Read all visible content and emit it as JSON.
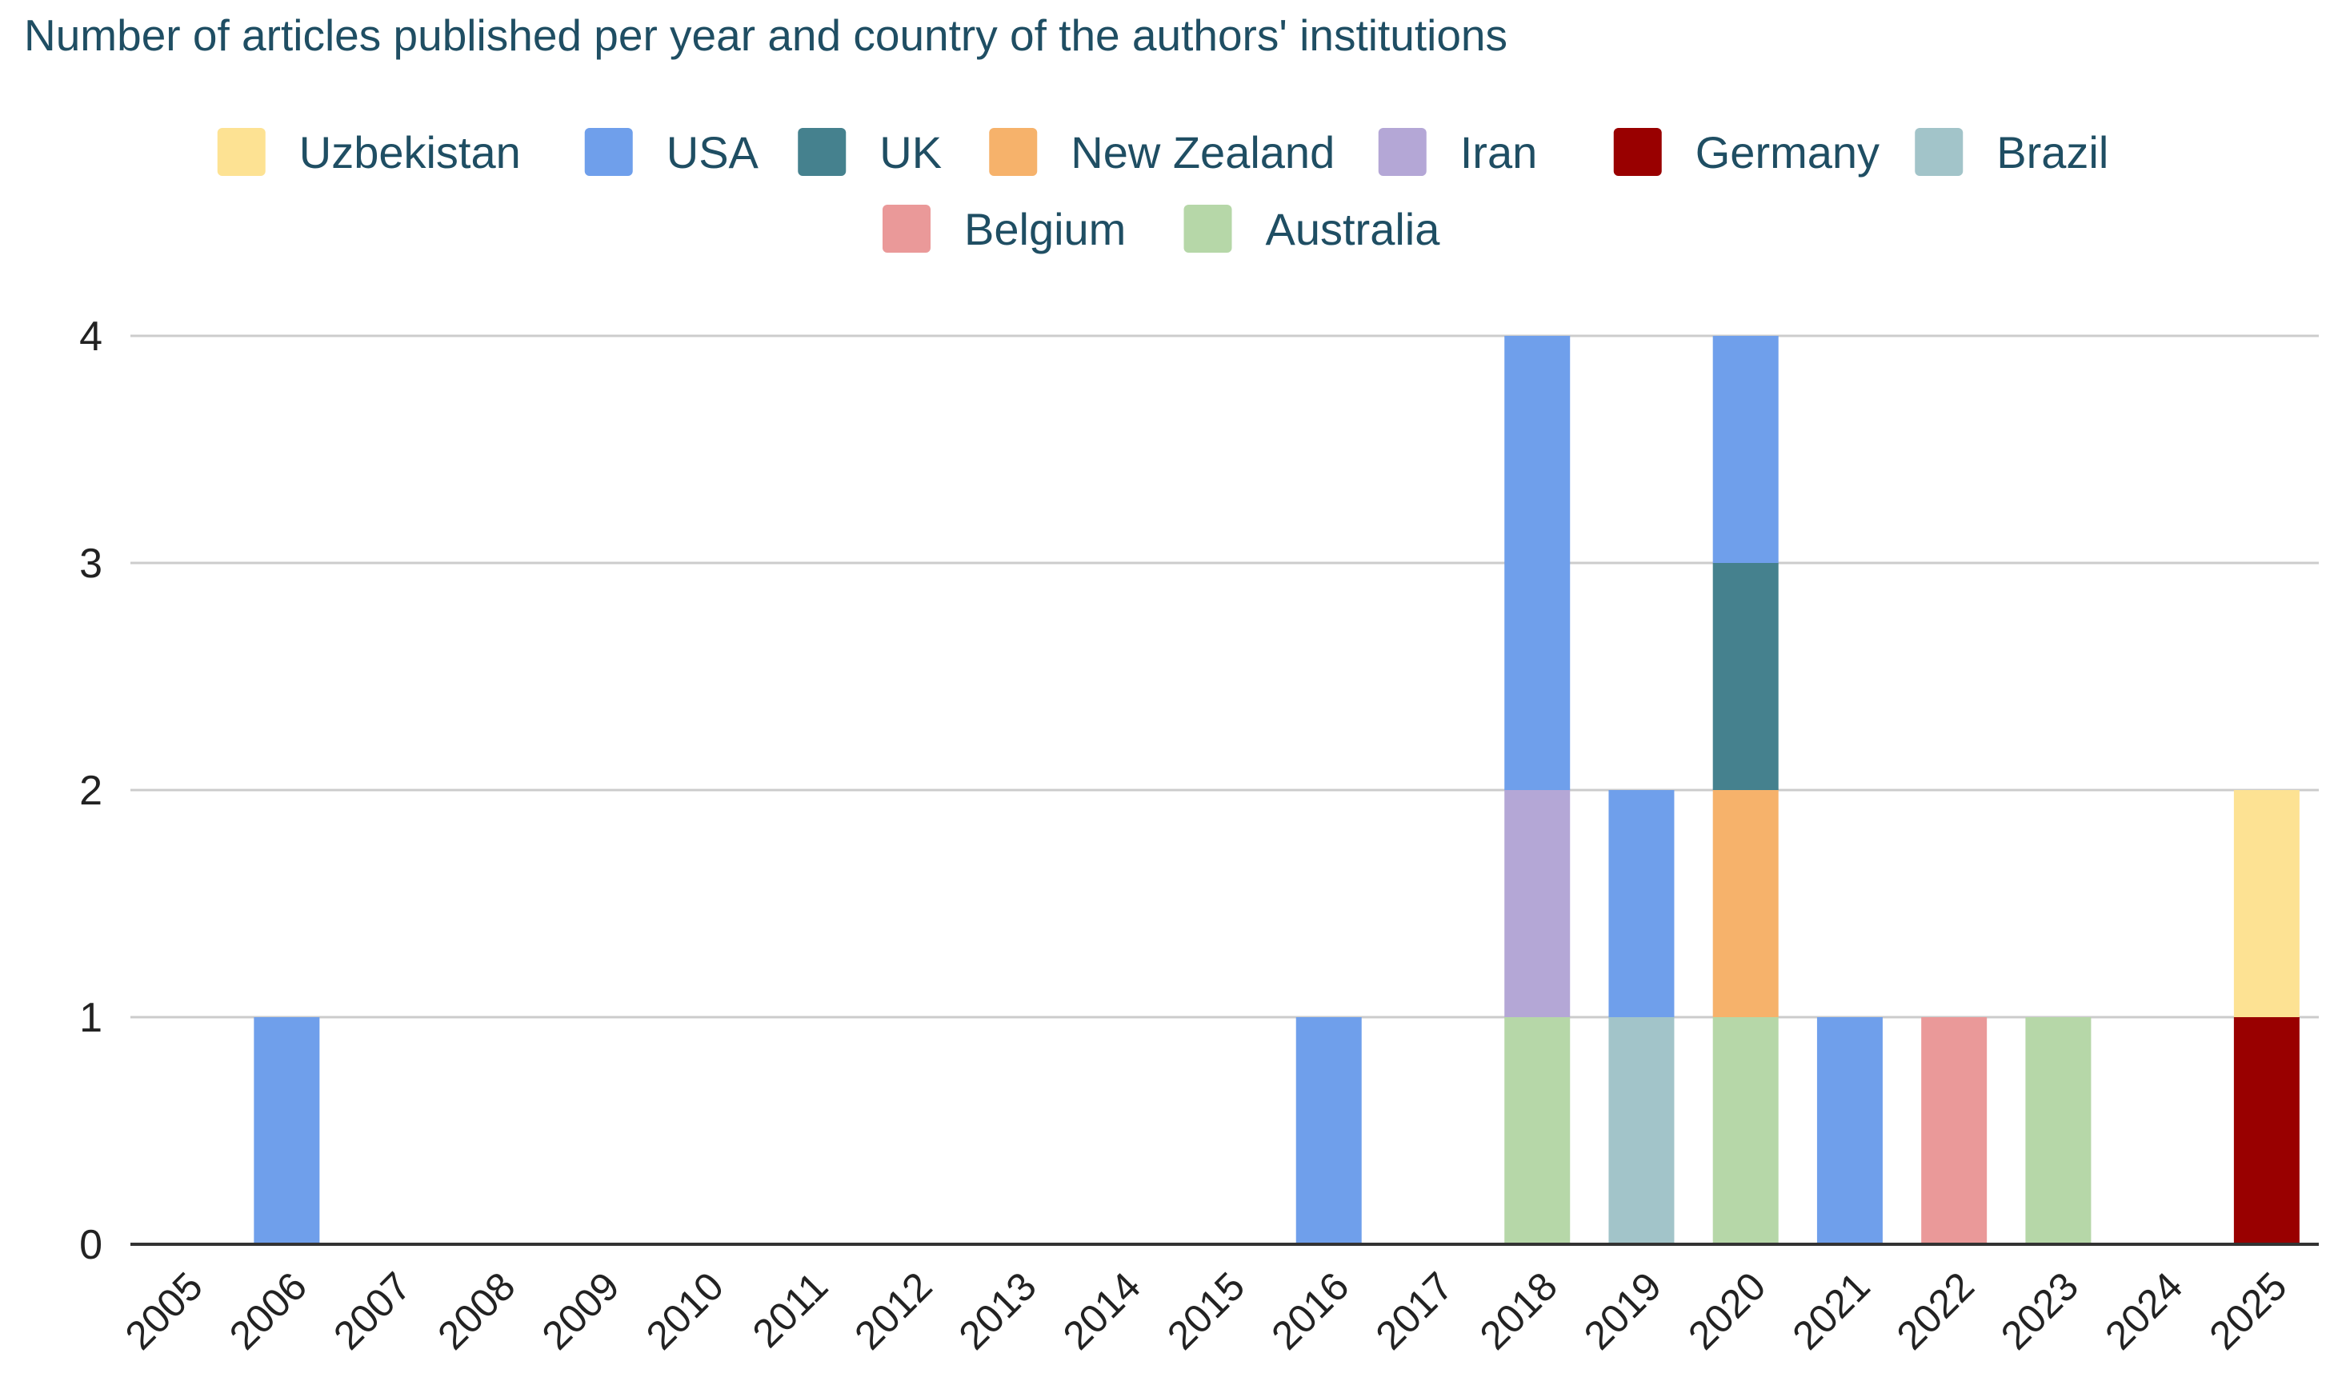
{
  "chart_data": {
    "type": "bar",
    "stacked": true,
    "title": "Number of articles published per year and country of the authors' institutions",
    "xlabel": "",
    "ylabel": "",
    "ylim": [
      0,
      4
    ],
    "yticks": [
      "0",
      "1",
      "2",
      "3",
      "4"
    ],
    "grid": true,
    "legend_position": "top",
    "categories": [
      "2005",
      "2006",
      "2007",
      "2008",
      "2009",
      "2010",
      "2011",
      "2012",
      "2013",
      "2014",
      "2015",
      "2016",
      "2017",
      "2018",
      "2019",
      "2020",
      "2021",
      "2022",
      "2023",
      "2024",
      "2025"
    ],
    "stack_order": [
      "Germany",
      "Australia",
      "Brazil",
      "Belgium",
      "Iran",
      "New Zealand",
      "UK",
      "USA",
      "Uzbekistan"
    ],
    "legend_order": [
      "Uzbekistan",
      "USA",
      "UK",
      "New Zealand",
      "Iran",
      "Germany",
      "Brazil",
      "Belgium",
      "Australia"
    ],
    "series": [
      {
        "name": "Uzbekistan",
        "color": "#FDE293",
        "values": [
          0,
          0,
          0,
          0,
          0,
          0,
          0,
          0,
          0,
          0,
          0,
          0,
          0,
          0,
          0,
          0,
          0,
          0,
          0,
          0,
          1
        ]
      },
      {
        "name": "USA",
        "color": "#6F9FEB",
        "values": [
          0,
          1,
          0,
          0,
          0,
          0,
          0,
          0,
          0,
          0,
          0,
          1,
          0,
          2,
          1,
          1,
          1,
          0,
          0,
          0,
          0
        ]
      },
      {
        "name": "UK",
        "color": "#45818E",
        "values": [
          0,
          0,
          0,
          0,
          0,
          0,
          0,
          0,
          0,
          0,
          0,
          0,
          0,
          0,
          0,
          1,
          0,
          0,
          0,
          0,
          0
        ]
      },
      {
        "name": "New Zealand",
        "color": "#F6B26B",
        "values": [
          0,
          0,
          0,
          0,
          0,
          0,
          0,
          0,
          0,
          0,
          0,
          0,
          0,
          0,
          0,
          1,
          0,
          0,
          0,
          0,
          0
        ]
      },
      {
        "name": "Iran",
        "color": "#B4A7D6",
        "values": [
          0,
          0,
          0,
          0,
          0,
          0,
          0,
          0,
          0,
          0,
          0,
          0,
          0,
          1,
          0,
          0,
          0,
          0,
          0,
          0,
          0
        ]
      },
      {
        "name": "Germany",
        "color": "#990000",
        "values": [
          0,
          0,
          0,
          0,
          0,
          0,
          0,
          0,
          0,
          0,
          0,
          0,
          0,
          0,
          0,
          0,
          0,
          0,
          0,
          0,
          1
        ]
      },
      {
        "name": "Brazil",
        "color": "#A2C4C9",
        "values": [
          0,
          0,
          0,
          0,
          0,
          0,
          0,
          0,
          0,
          0,
          0,
          0,
          0,
          0,
          1,
          0,
          0,
          0,
          0,
          0,
          0
        ]
      },
      {
        "name": "Belgium",
        "color": "#EA9999",
        "values": [
          0,
          0,
          0,
          0,
          0,
          0,
          0,
          0,
          0,
          0,
          0,
          0,
          0,
          0,
          0,
          0,
          0,
          1,
          0,
          0,
          0
        ]
      },
      {
        "name": "Australia",
        "color": "#B6D7A8",
        "values": [
          0,
          0,
          0,
          0,
          0,
          0,
          0,
          0,
          0,
          0,
          0,
          0,
          0,
          1,
          0,
          1,
          0,
          0,
          1,
          0,
          0
        ]
      }
    ],
    "colors": {
      "title": "#1F4E63",
      "legend_text": "#1F4E63",
      "tick_text": "#222222",
      "gridline": "#CCCCCC",
      "axis": "#333333"
    }
  }
}
